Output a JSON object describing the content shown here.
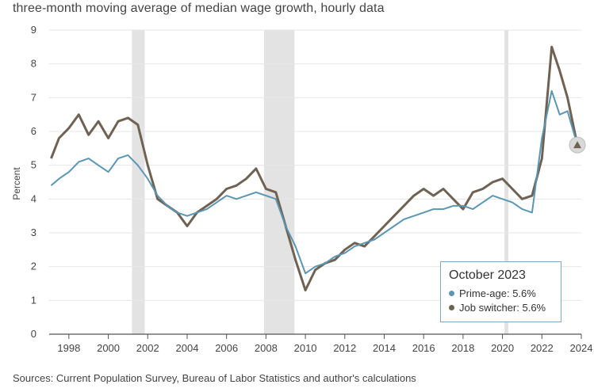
{
  "title": "three-month moving average of median wage growth, hourly data",
  "source": "Sources: Current Population Survey, Bureau of Labor Statistics and author's calculations",
  "colors": {
    "prime": "#5b96b3",
    "job": "#6f6253",
    "recession": "#e3e3e3"
  },
  "chart_data": {
    "type": "line",
    "title": "three-month moving average of median wage growth, hourly data",
    "xlabel": "",
    "ylabel": "Percent",
    "xlim": [
      1997,
      2024
    ],
    "ylim": [
      0,
      9
    ],
    "xticks": [
      1998,
      2000,
      2002,
      2004,
      2006,
      2008,
      2010,
      2012,
      2014,
      2016,
      2018,
      2020,
      2022,
      2024
    ],
    "yticks": [
      0,
      1,
      2,
      3,
      4,
      5,
      6,
      7,
      8,
      9
    ],
    "grid": "horizontal",
    "recessions": [
      [
        2001.2,
        2001.85
      ],
      [
        2007.9,
        2009.45
      ],
      [
        2020.1,
        2020.3
      ]
    ],
    "legend": {
      "title": "October 2023",
      "items": [
        "Prime-age: 5.6%",
        "Job switcher: 5.6%"
      ],
      "placement": "bottom-right"
    },
    "series": [
      {
        "name": "Prime-age",
        "x": [
          1997.1,
          1997.5,
          1998.0,
          1998.5,
          1999.0,
          1999.5,
          2000.0,
          2000.5,
          2001.0,
          2001.5,
          2002.0,
          2002.5,
          2003.0,
          2003.5,
          2004.0,
          2004.5,
          2005.0,
          2005.5,
          2006.0,
          2006.5,
          2007.0,
          2007.5,
          2008.0,
          2008.5,
          2009.0,
          2009.5,
          2010.0,
          2010.5,
          2011.0,
          2011.5,
          2012.0,
          2012.5,
          2013.0,
          2013.5,
          2014.0,
          2014.5,
          2015.0,
          2015.5,
          2016.0,
          2016.5,
          2017.0,
          2017.5,
          2018.0,
          2018.5,
          2019.0,
          2019.5,
          2020.0,
          2020.5,
          2021.0,
          2021.5,
          2022.0,
          2022.5,
          2022.9,
          2023.3,
          2023.8
        ],
        "y": [
          4.4,
          4.6,
          4.8,
          5.1,
          5.2,
          5.0,
          4.8,
          5.2,
          5.3,
          5.0,
          4.6,
          4.1,
          3.8,
          3.6,
          3.5,
          3.6,
          3.7,
          3.9,
          4.1,
          4.0,
          4.1,
          4.2,
          4.1,
          4.0,
          3.2,
          2.6,
          1.8,
          2.0,
          2.1,
          2.3,
          2.4,
          2.6,
          2.7,
          2.8,
          3.0,
          3.2,
          3.4,
          3.5,
          3.6,
          3.7,
          3.7,
          3.8,
          3.8,
          3.7,
          3.9,
          4.1,
          4.0,
          3.9,
          3.7,
          3.6,
          5.8,
          7.2,
          6.5,
          6.6,
          5.6
        ]
      },
      {
        "name": "Job switcher",
        "x": [
          1997.1,
          1997.5,
          1998.0,
          1998.5,
          1999.0,
          1999.5,
          2000.0,
          2000.5,
          2001.0,
          2001.5,
          2002.0,
          2002.5,
          2003.0,
          2003.5,
          2004.0,
          2004.5,
          2005.0,
          2005.5,
          2006.0,
          2006.5,
          2007.0,
          2007.5,
          2008.0,
          2008.5,
          2009.0,
          2009.5,
          2010.0,
          2010.5,
          2011.0,
          2011.5,
          2012.0,
          2012.5,
          2013.0,
          2013.5,
          2014.0,
          2014.5,
          2015.0,
          2015.5,
          2016.0,
          2016.5,
          2017.0,
          2017.5,
          2018.0,
          2018.5,
          2019.0,
          2019.5,
          2020.0,
          2020.5,
          2021.0,
          2021.5,
          2022.0,
          2022.5,
          2022.9,
          2023.3,
          2023.8
        ],
        "y": [
          5.2,
          5.8,
          6.1,
          6.5,
          5.9,
          6.3,
          5.8,
          6.3,
          6.4,
          6.2,
          5.0,
          4.0,
          3.8,
          3.6,
          3.2,
          3.6,
          3.8,
          4.0,
          4.3,
          4.4,
          4.6,
          4.9,
          4.3,
          4.2,
          3.2,
          2.2,
          1.3,
          1.9,
          2.1,
          2.2,
          2.5,
          2.7,
          2.6,
          2.9,
          3.2,
          3.5,
          3.8,
          4.1,
          4.3,
          4.1,
          4.3,
          4.0,
          3.7,
          4.2,
          4.3,
          4.5,
          4.6,
          4.3,
          4.0,
          4.1,
          5.2,
          8.5,
          7.8,
          7.0,
          5.6
        ]
      }
    ]
  }
}
